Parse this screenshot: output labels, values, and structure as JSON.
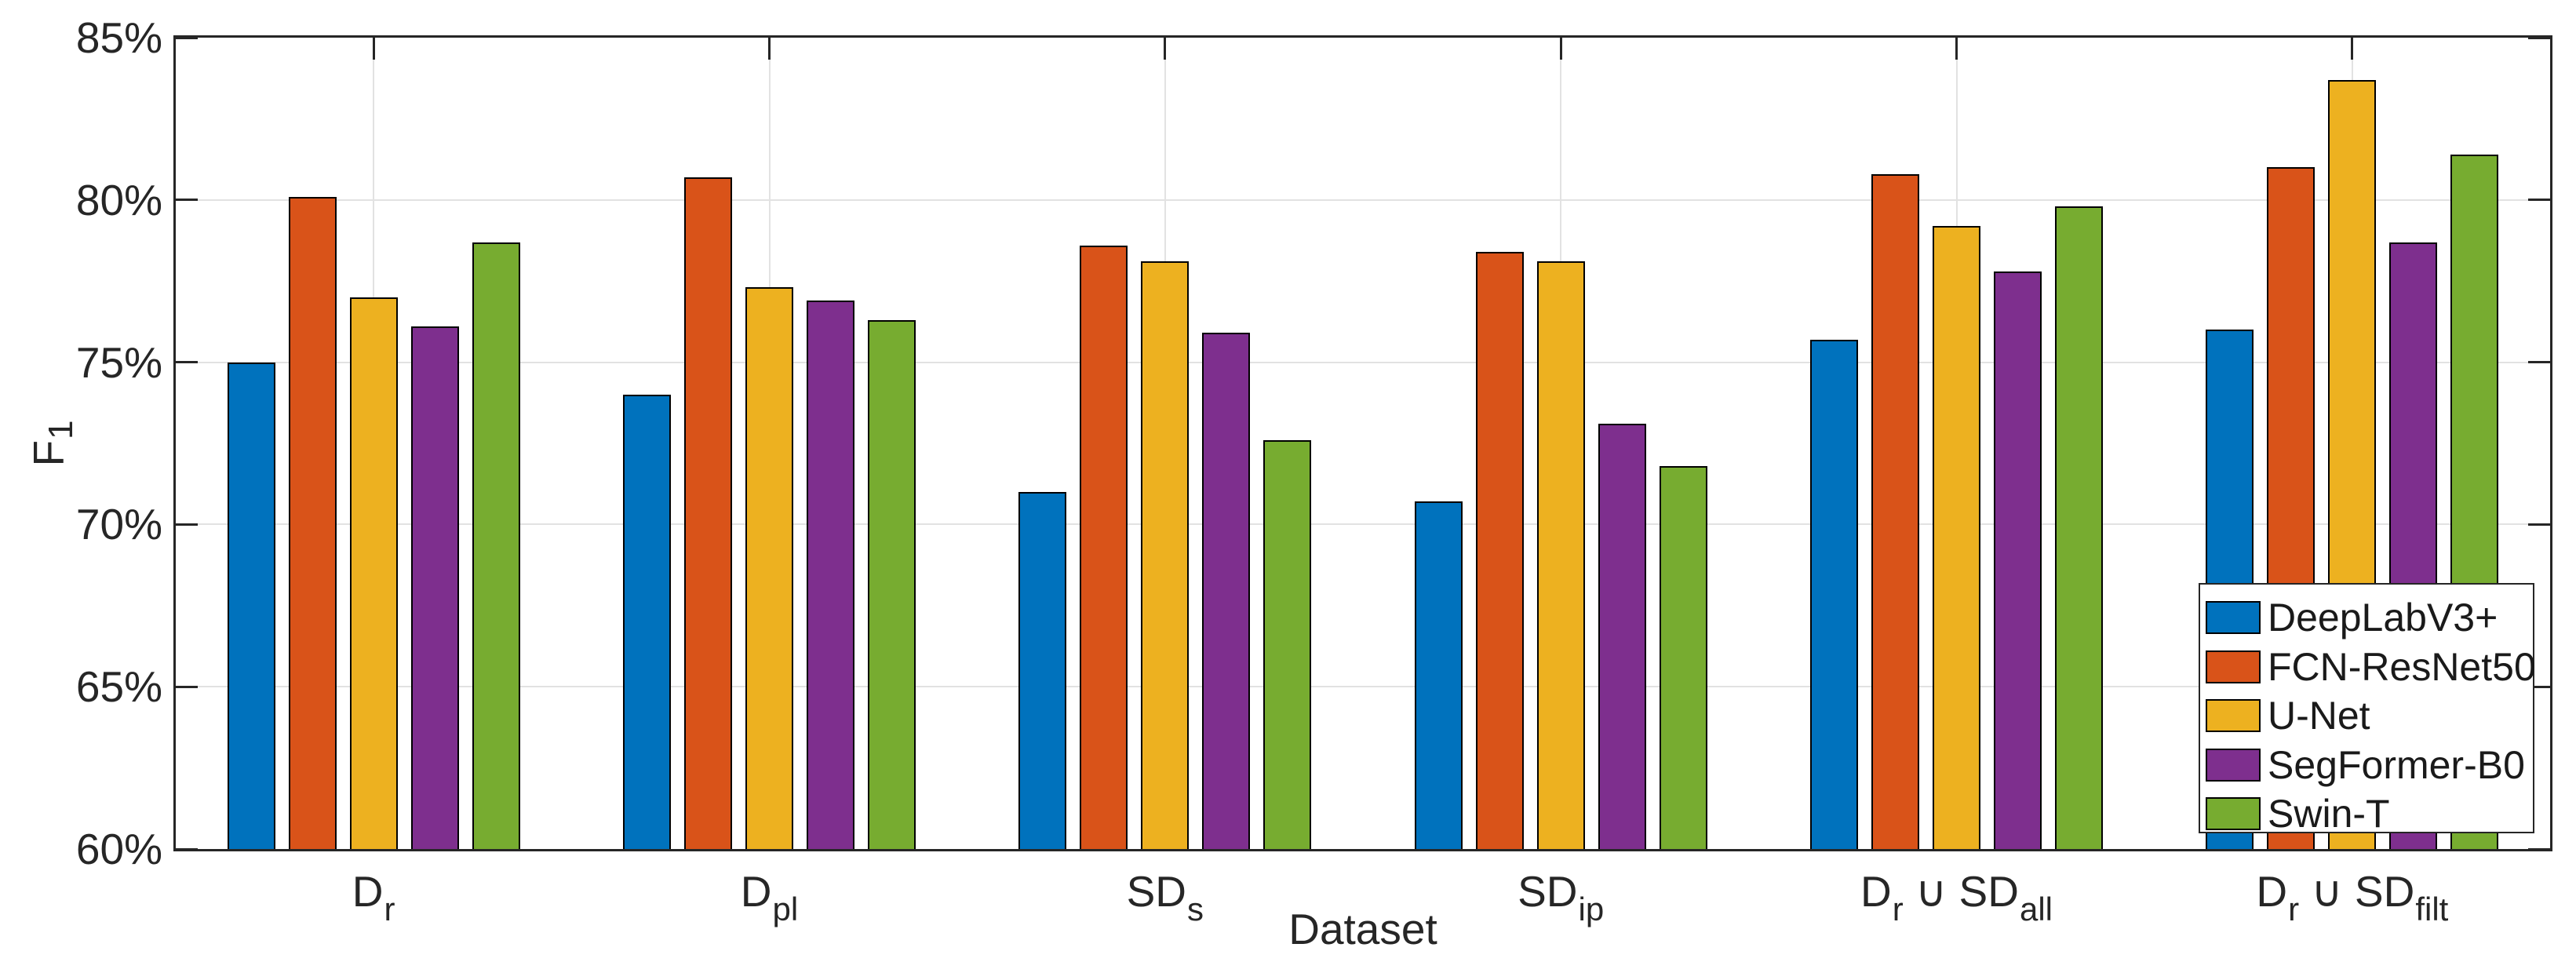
{
  "chart_data": {
    "type": "bar",
    "title": "",
    "xlabel": "Dataset",
    "ylabel": "F1",
    "ylabel_main": "F",
    "ylabel_sub": "1",
    "unit": "%",
    "ylim": [
      60,
      85
    ],
    "grid": true,
    "legend_position": "southeast inside axes",
    "background": "#FFFFFF",
    "axis_color": "#262626",
    "grid_color": "#E2E2E2",
    "bar_edge_color": "#000000",
    "yticks": [
      {
        "value": 85,
        "label": "85%"
      },
      {
        "value": 80,
        "label": "80%"
      },
      {
        "value": 75,
        "label": "75%"
      },
      {
        "value": 70,
        "label": "70%"
      },
      {
        "value": 65,
        "label": "65%"
      },
      {
        "value": 60,
        "label": "60%"
      }
    ],
    "categories": [
      {
        "name": "D_r",
        "segments": [
          {
            "text": "D"
          },
          {
            "sub": "r"
          }
        ]
      },
      {
        "name": "D_pl",
        "segments": [
          {
            "text": "D"
          },
          {
            "sub": "pl"
          }
        ]
      },
      {
        "name": "SD_s",
        "segments": [
          {
            "text": "SD"
          },
          {
            "sub": "s"
          }
        ]
      },
      {
        "name": "SD_ip",
        "segments": [
          {
            "text": "SD"
          },
          {
            "sub": "ip"
          }
        ]
      },
      {
        "name": "D_r ∪ SD_all",
        "segments": [
          {
            "text": "D"
          },
          {
            "sub": "r"
          },
          {
            "text": " ∪ SD"
          },
          {
            "sub": "all"
          }
        ]
      },
      {
        "name": "D_r ∪ SD_filt",
        "segments": [
          {
            "text": "D"
          },
          {
            "sub": "r"
          },
          {
            "text": " ∪ SD"
          },
          {
            "sub": "filt"
          }
        ]
      }
    ],
    "series": [
      {
        "name": "DeepLabV3+",
        "color": "#0072BD",
        "values": [
          75.0,
          74.0,
          71.0,
          70.7,
          75.7,
          76.0
        ]
      },
      {
        "name": "FCN-ResNet50",
        "color": "#D95319",
        "values": [
          80.1,
          80.7,
          78.6,
          78.4,
          80.8,
          81.0
        ]
      },
      {
        "name": "U-Net",
        "color": "#EDB120",
        "values": [
          77.0,
          77.3,
          78.1,
          78.1,
          79.2,
          83.7
        ]
      },
      {
        "name": "SegFormer-B0",
        "color": "#7E2F8E",
        "values": [
          76.1,
          76.9,
          75.9,
          73.1,
          77.8,
          78.7
        ]
      },
      {
        "name": "Swin-T",
        "color": "#77AC30",
        "values": [
          78.7,
          76.3,
          72.6,
          71.8,
          79.8,
          81.4
        ]
      }
    ]
  }
}
